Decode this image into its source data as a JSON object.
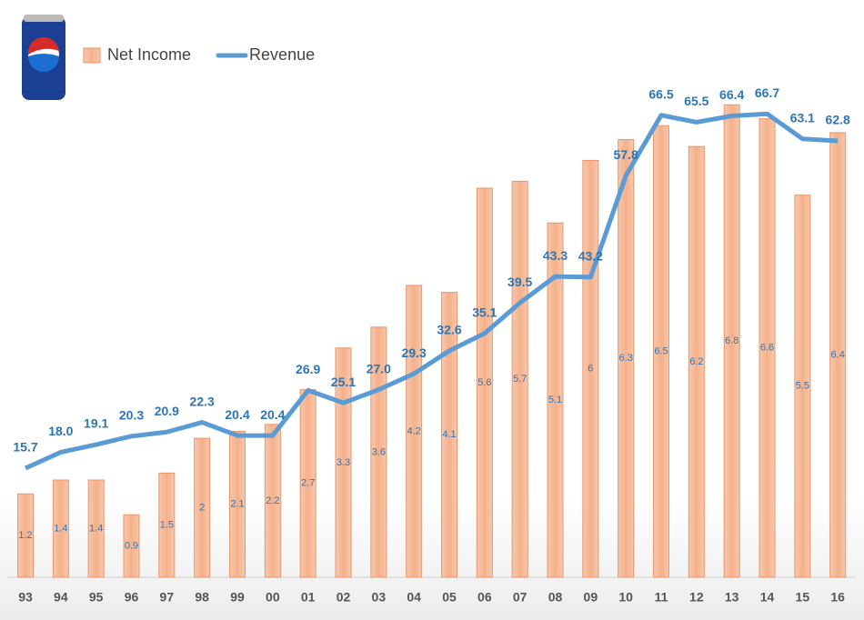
{
  "chart_data": {
    "type": "combo",
    "categories": [
      "93",
      "94",
      "95",
      "96",
      "97",
      "98",
      "99",
      "00",
      "01",
      "02",
      "03",
      "04",
      "05",
      "06",
      "07",
      "08",
      "09",
      "10",
      "11",
      "12",
      "13",
      "14",
      "15",
      "16"
    ],
    "series": [
      {
        "name": "Net Income",
        "type": "bar",
        "axis": "y",
        "color": "#f4b08a",
        "values": [
          1.2,
          1.4,
          1.4,
          0.9,
          1.5,
          2.0,
          2.1,
          2.2,
          2.7,
          3.3,
          3.6,
          4.2,
          4.1,
          5.6,
          5.7,
          5.1,
          6.0,
          6.3,
          6.5,
          6.2,
          6.8,
          6.6,
          5.5,
          6.4
        ]
      },
      {
        "name": "Revenue",
        "type": "line",
        "axis": "y2",
        "color": "#5b9bd5",
        "values": [
          15.7,
          18.0,
          19.1,
          20.3,
          20.9,
          22.3,
          20.4,
          20.4,
          26.9,
          25.1,
          27.0,
          29.3,
          32.6,
          35.1,
          39.5,
          43.3,
          43.2,
          57.8,
          66.5,
          65.5,
          66.4,
          66.7,
          63.1,
          62.8
        ],
        "value_labels": [
          "15.7",
          "18.0",
          "19.1",
          "20.3",
          "20.9",
          "22.3",
          "20.4",
          "20.4",
          "26.9",
          "25.1",
          "27.0",
          "29.3",
          "32.6",
          "35.1",
          "39.5",
          "43.3",
          "43.2",
          "57.8",
          "66.5",
          "65.5",
          "66.4",
          "66.7",
          "63.1",
          "62.8"
        ]
      }
    ],
    "ylim": [
      0,
      7
    ],
    "y2lim": [
      0,
      70
    ],
    "legend": "top-left"
  }
}
